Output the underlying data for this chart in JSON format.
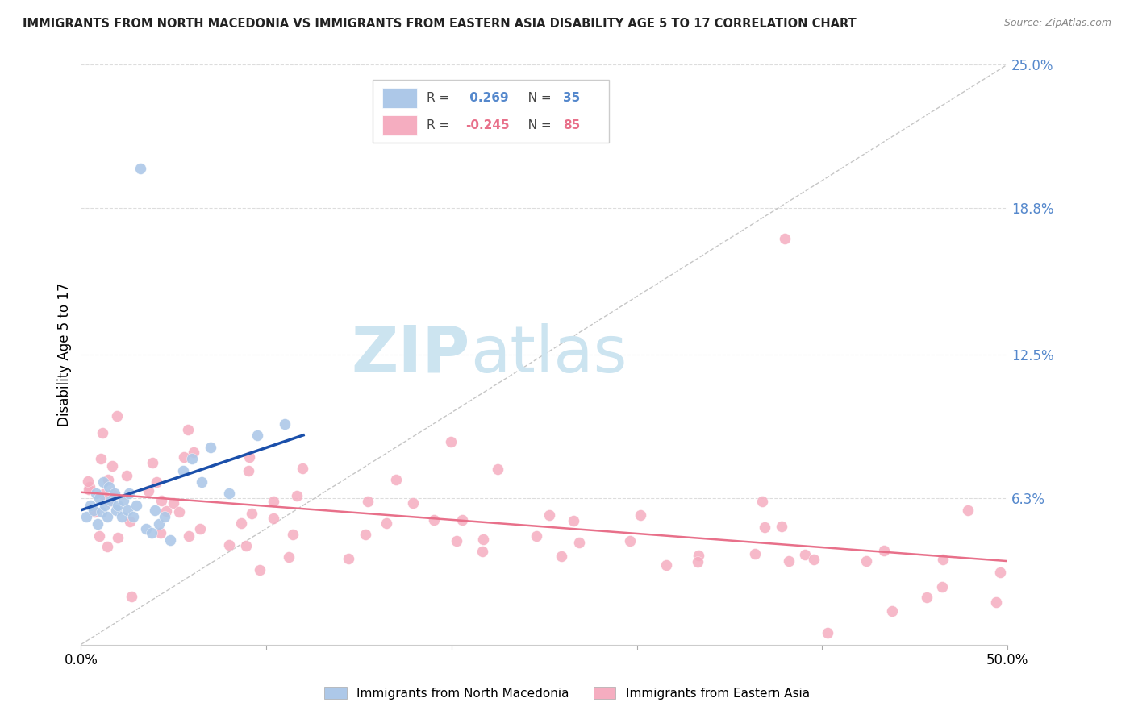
{
  "title": "IMMIGRANTS FROM NORTH MACEDONIA VS IMMIGRANTS FROM EASTERN ASIA DISABILITY AGE 5 TO 17 CORRELATION CHART",
  "source": "Source: ZipAtlas.com",
  "ylabel": "Disability Age 5 to 17",
  "xlim": [
    0.0,
    0.5
  ],
  "ylim": [
    0.0,
    0.25
  ],
  "ytick_right_labels": [
    "25.0%",
    "18.8%",
    "12.5%",
    "6.3%"
  ],
  "ytick_right_values": [
    0.25,
    0.188,
    0.125,
    0.063
  ],
  "r_blue": 0.269,
  "n_blue": 35,
  "r_pink": -0.245,
  "n_pink": 85,
  "blue_color": "#adc8e8",
  "pink_color": "#f5adc0",
  "blue_line_color": "#1a4faa",
  "pink_line_color": "#e8708a",
  "dashed_line_color": "#c0c0c0",
  "grid_color": "#dddddd",
  "label_color": "#5588cc",
  "watermark_color": "#cce4f0"
}
